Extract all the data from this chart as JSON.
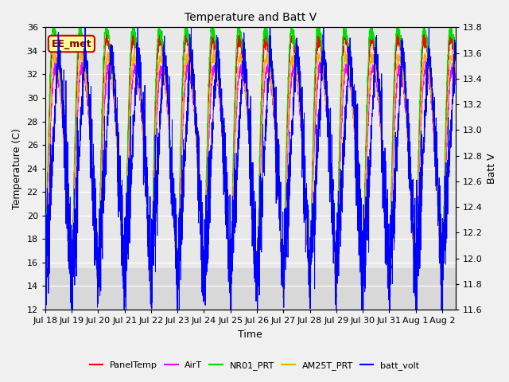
{
  "title": "Temperature and Batt V",
  "xlabel": "Time",
  "ylabel_left": "Temperature (C)",
  "ylabel_right": "Batt V",
  "annotation": "EE_met",
  "ylim_left": [
    12,
    36
  ],
  "ylim_right": [
    11.6,
    13.8
  ],
  "yticks_left": [
    12,
    14,
    16,
    18,
    20,
    22,
    24,
    26,
    28,
    30,
    32,
    34,
    36
  ],
  "yticks_right": [
    11.6,
    11.8,
    12.0,
    12.2,
    12.4,
    12.6,
    12.8,
    13.0,
    13.2,
    13.4,
    13.6,
    13.8
  ],
  "xtick_labels": [
    "Jul 18",
    "Jul 19",
    "Jul 20",
    "Jul 21",
    "Jul 22",
    "Jul 23",
    "Jul 24",
    "Jul 25",
    "Jul 26",
    "Jul 27",
    "Jul 28",
    "Jul 29",
    "Jul 30",
    "Jul 31",
    "Aug 1",
    "Aug 2"
  ],
  "n_days": 15.5,
  "n_points": 3720,
  "colors": {
    "PanelTemp": "#ff0000",
    "AirT": "#ff00ff",
    "NR01_PRT": "#00dd00",
    "AM25T_PRT": "#ffaa00",
    "batt_volt": "#0000ff"
  },
  "background_color": "#d8d8d8",
  "plot_band_color": "#e8e8e8",
  "linewidth": 0.7,
  "annotation_bg": "#ffff99",
  "annotation_border": "#cc0000",
  "annotation_text_color": "#880000"
}
